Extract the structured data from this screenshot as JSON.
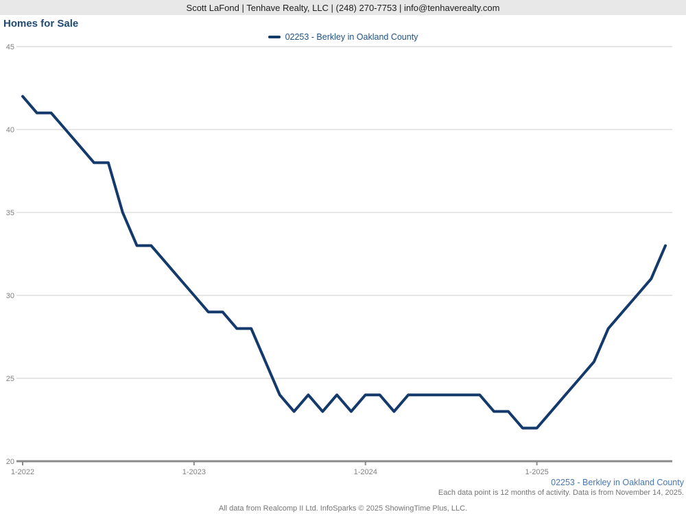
{
  "header": {
    "contact_line": "Scott LaFond | Tenhave Realty, LLC | (248) 270-7753 | info@tenhaverealty.com"
  },
  "title": "Homes for Sale",
  "legend": {
    "label": "02253 - Berkley in Oakland County",
    "color": "#14396b"
  },
  "footer": {
    "series_label": "02253 - Berkley in Oakland County",
    "data_note": "Each data point is 12 months of activity. Data is from November 14, 2025.",
    "attribution": "All data from Realcomp II Ltd. InfoSparks © 2025 ShowingTime Plus, LLC."
  },
  "chart_data": {
    "type": "line",
    "title": "Homes for Sale",
    "xlabel": "",
    "ylabel": "",
    "ylim": [
      20,
      45
    ],
    "yticks": [
      20,
      25,
      30,
      35,
      40,
      45
    ],
    "grid": "horizontal",
    "legend_position": "top-center",
    "x": [
      "1-2022",
      "2-2022",
      "3-2022",
      "4-2022",
      "5-2022",
      "6-2022",
      "7-2022",
      "8-2022",
      "9-2022",
      "10-2022",
      "11-2022",
      "12-2022",
      "1-2023",
      "2-2023",
      "3-2023",
      "4-2023",
      "5-2023",
      "6-2023",
      "7-2023",
      "8-2023",
      "9-2023",
      "10-2023",
      "11-2023",
      "12-2023",
      "1-2024",
      "2-2024",
      "3-2024",
      "4-2024",
      "5-2024",
      "6-2024",
      "7-2024",
      "8-2024",
      "9-2024",
      "10-2024",
      "11-2024",
      "12-2024",
      "1-2025",
      "2-2025",
      "3-2025",
      "4-2025",
      "5-2025",
      "6-2025",
      "7-2025",
      "8-2025",
      "9-2025",
      "10-2025"
    ],
    "x_axis_tick_labels": [
      "1-2022",
      "1-2023",
      "1-2024",
      "1-2025"
    ],
    "series": [
      {
        "name": "02253 - Berkley in Oakland County",
        "color": "#14396b",
        "values": [
          42,
          41,
          41,
          40,
          39,
          38,
          38,
          35,
          33,
          33,
          32,
          31,
          30,
          29,
          29,
          28,
          28,
          26,
          24,
          23,
          24,
          23,
          24,
          23,
          24,
          24,
          23,
          24,
          24,
          24,
          24,
          24,
          24,
          23,
          23,
          22,
          22,
          23,
          24,
          25,
          26,
          28,
          29,
          30,
          31,
          33
        ]
      }
    ],
    "axis_colors": {
      "gridline": "#cccccc",
      "axis_line": "#8a8a8a",
      "tick_label": "#808080"
    }
  }
}
